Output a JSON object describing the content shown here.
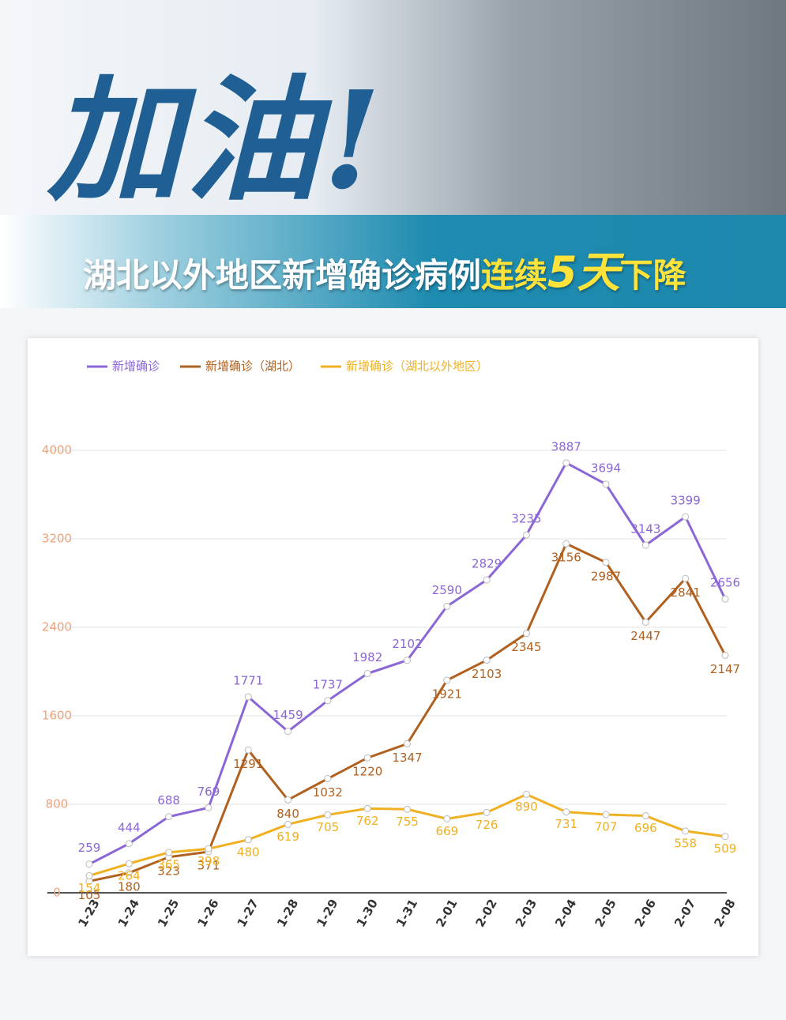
{
  "header": {
    "title": "加油!",
    "subtitle": [
      "湖北以外地区新增确诊病例",
      "连续",
      "5天",
      "下降"
    ]
  },
  "chart_data": {
    "type": "line",
    "categories": [
      "1-23",
      "1-24",
      "1-25",
      "1-26",
      "1-27",
      "1-28",
      "1-29",
      "1-30",
      "1-31",
      "2-01",
      "2-02",
      "2-03",
      "2-04",
      "2-05",
      "2-06",
      "2-07",
      "2-08"
    ],
    "series": [
      {
        "name": "新增确诊",
        "color": "#8b66d6",
        "values": [
          259,
          444,
          688,
          769,
          1771,
          1459,
          1737,
          1982,
          2102,
          2590,
          2829,
          3235,
          3887,
          3694,
          3143,
          3399,
          2656
        ]
      },
      {
        "name": "新增确诊（湖北）",
        "color": "#b0601f",
        "values": [
          105,
          180,
          323,
          371,
          1291,
          840,
          1032,
          1220,
          1347,
          1921,
          2103,
          2345,
          3156,
          2987,
          2447,
          2841,
          2147
        ]
      },
      {
        "name": "新增确诊（湖北以外地区）",
        "color": "#efb021",
        "values": [
          154,
          264,
          365,
          398,
          480,
          619,
          705,
          762,
          755,
          669,
          726,
          890,
          731,
          707,
          696,
          558,
          509
        ]
      }
    ],
    "ylim": [
      0,
      4000
    ],
    "yticks": [
      0,
      800,
      1600,
      2400,
      3200,
      4000
    ],
    "grid": true
  }
}
